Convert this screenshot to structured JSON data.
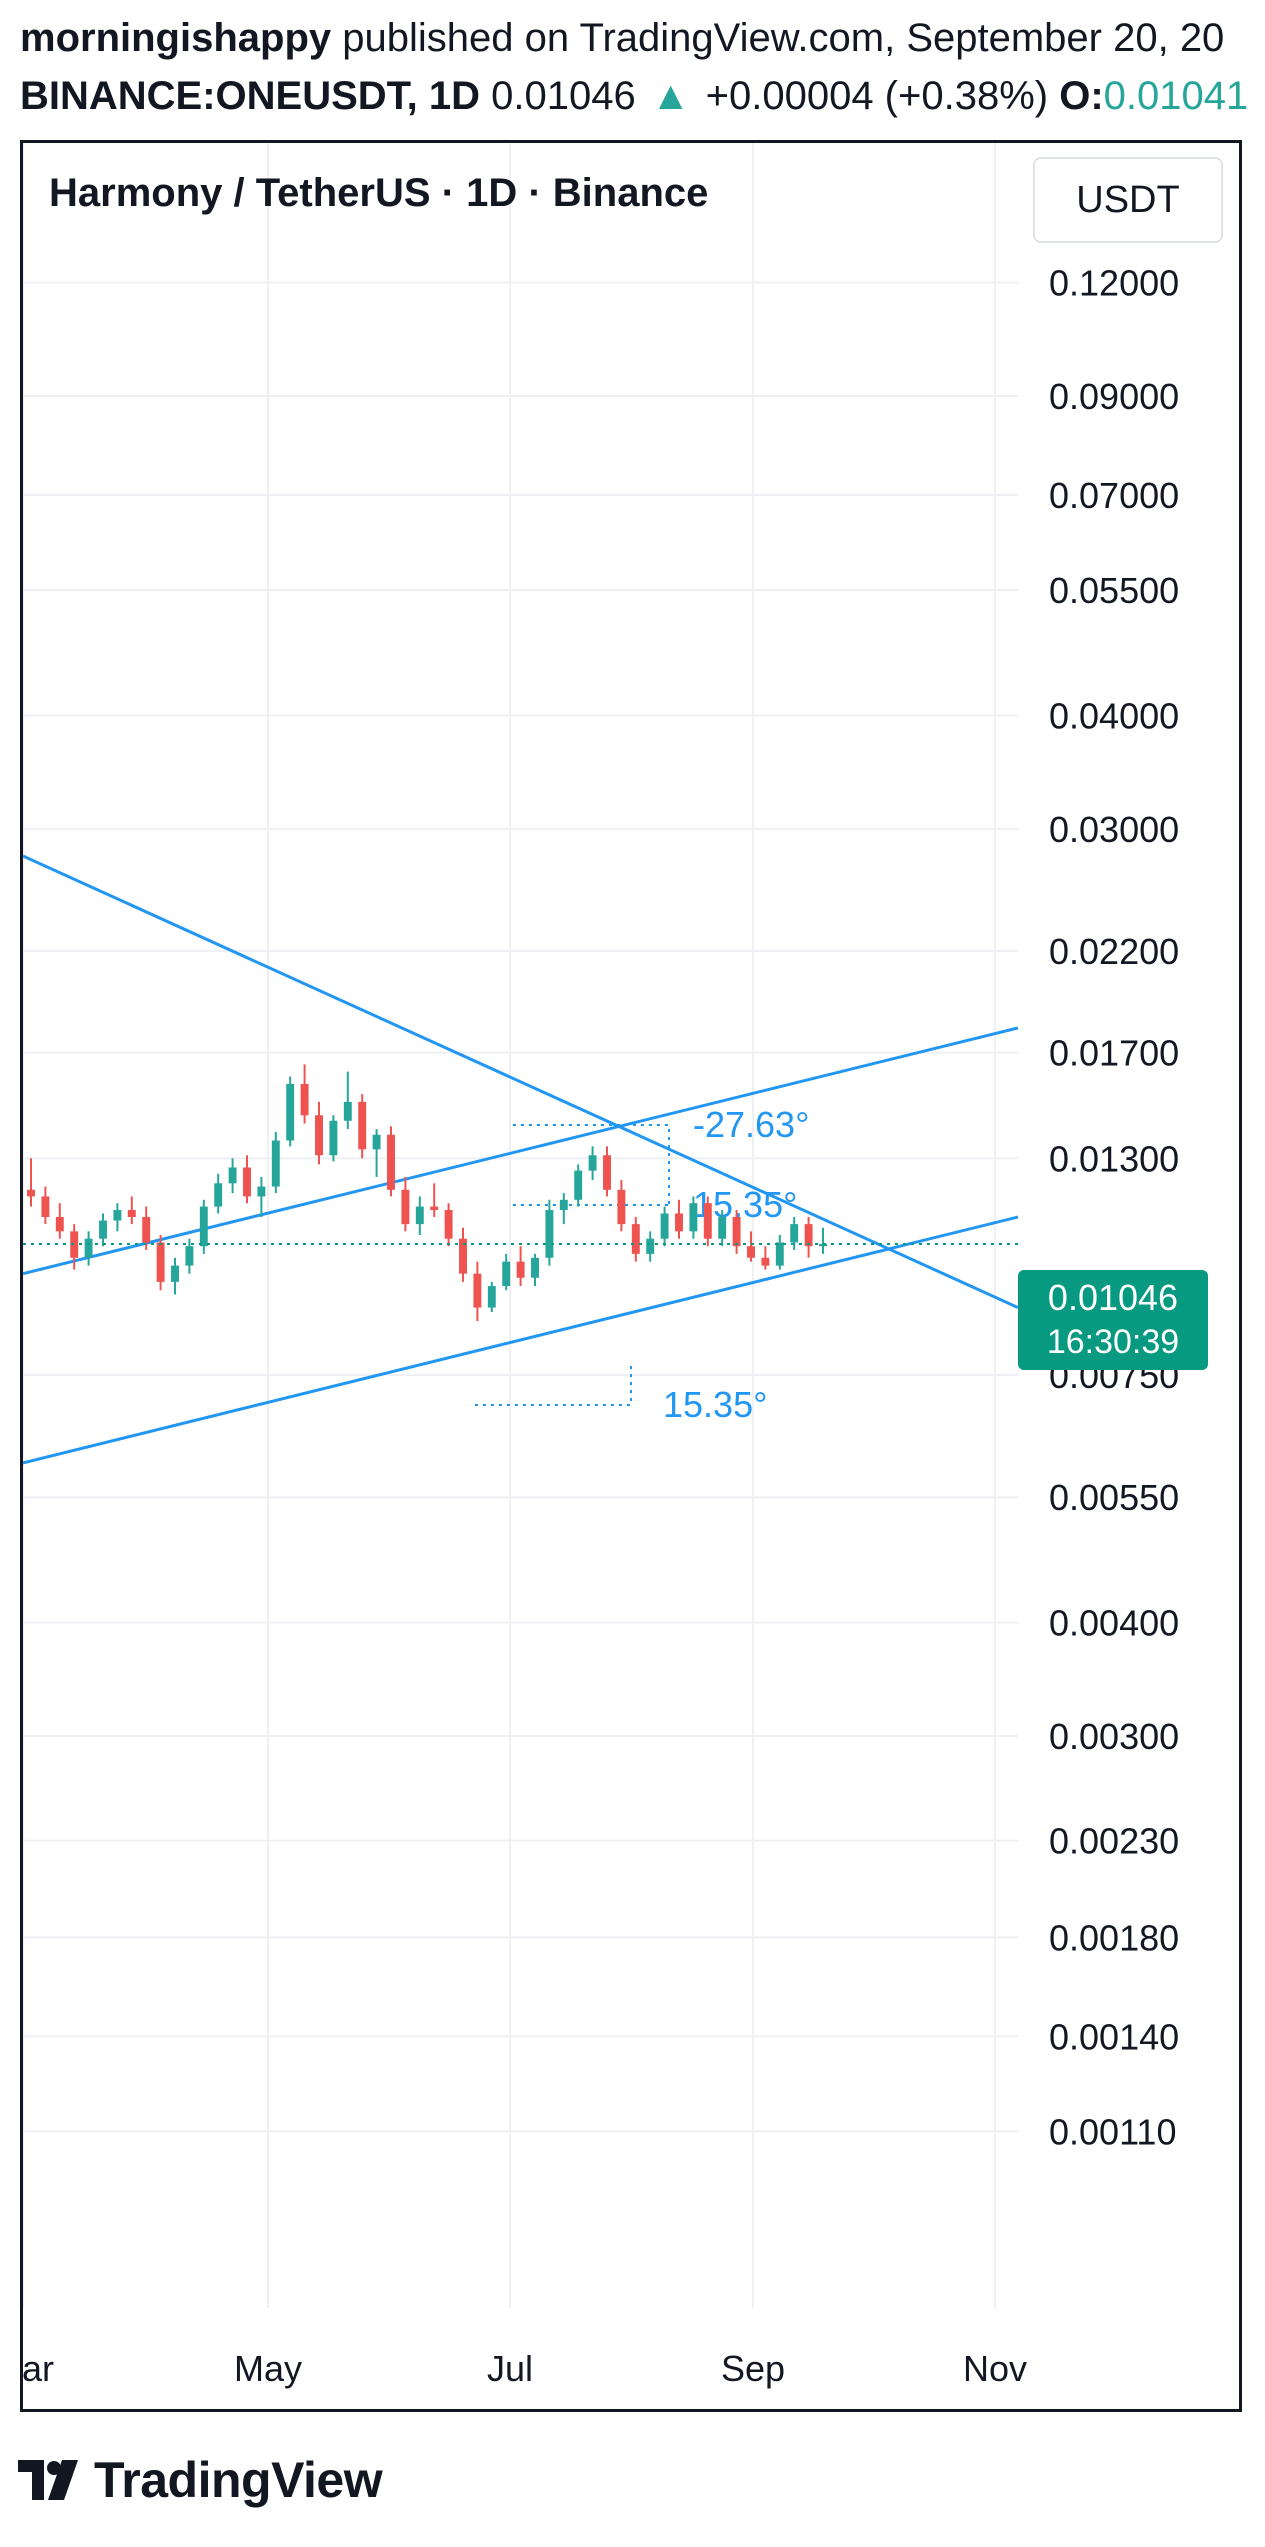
{
  "header": {
    "author": "morningishappy",
    "published_text": " published on TradingView.com, September 20, 20",
    "symbol": "BINANCE:ONEUSDT, 1D",
    "last": "0.01046",
    "change": "+0.00004 (+0.38%)",
    "open_label": "O:",
    "open_value": "0.01041"
  },
  "chart": {
    "title": "Harmony / TetherUS · 1D · Binance",
    "currency": "USDT",
    "price_label": "0.01046",
    "countdown": "16:30:39"
  },
  "chart_data": {
    "type": "candlestick",
    "symbol": "BINANCE:ONEUSDT",
    "interval": "1D",
    "y_scale": "log",
    "y_ticks": [
      "0.12000",
      "0.09000",
      "0.07000",
      "0.05500",
      "0.04000",
      "0.03000",
      "0.02200",
      "0.01700",
      "0.01300",
      "0.00750",
      "0.00550",
      "0.00400",
      "0.00300",
      "0.00230",
      "0.00180",
      "0.00140",
      "0.00110"
    ],
    "x_ticks": [
      "Mar",
      "May",
      "Jul",
      "Sep",
      "Nov"
    ],
    "last_price": 0.01046,
    "ohlc": [
      [
        0.012,
        0.013,
        0.0115,
        0.0118
      ],
      [
        0.0118,
        0.0121,
        0.011,
        0.0112
      ],
      [
        0.0112,
        0.0116,
        0.0106,
        0.0108
      ],
      [
        0.0108,
        0.011,
        0.0098,
        0.0101
      ],
      [
        0.0101,
        0.0108,
        0.0099,
        0.0106
      ],
      [
        0.0106,
        0.0113,
        0.0104,
        0.0111
      ],
      [
        0.0111,
        0.0116,
        0.0108,
        0.0114
      ],
      [
        0.0114,
        0.0118,
        0.011,
        0.0112
      ],
      [
        0.0112,
        0.0115,
        0.0103,
        0.0105
      ],
      [
        0.0105,
        0.0107,
        0.0093,
        0.0095
      ],
      [
        0.0095,
        0.0101,
        0.0092,
        0.0099
      ],
      [
        0.0099,
        0.0106,
        0.0097,
        0.0104
      ],
      [
        0.0104,
        0.0117,
        0.0102,
        0.0115
      ],
      [
        0.0115,
        0.0125,
        0.0113,
        0.0122
      ],
      [
        0.0122,
        0.013,
        0.0119,
        0.0127
      ],
      [
        0.0127,
        0.0131,
        0.0116,
        0.0118
      ],
      [
        0.0118,
        0.0124,
        0.0112,
        0.0121
      ],
      [
        0.0121,
        0.0139,
        0.0119,
        0.0136
      ],
      [
        0.0136,
        0.016,
        0.0134,
        0.0157
      ],
      [
        0.0157,
        0.0165,
        0.0142,
        0.0145
      ],
      [
        0.0145,
        0.015,
        0.0128,
        0.0131
      ],
      [
        0.0131,
        0.0145,
        0.0129,
        0.0143
      ],
      [
        0.0143,
        0.0162,
        0.014,
        0.015
      ],
      [
        0.015,
        0.0153,
        0.013,
        0.0133
      ],
      [
        0.0133,
        0.014,
        0.0124,
        0.0138
      ],
      [
        0.0138,
        0.0141,
        0.0118,
        0.012
      ],
      [
        0.012,
        0.0124,
        0.0108,
        0.011
      ],
      [
        0.011,
        0.0118,
        0.0107,
        0.0115
      ],
      [
        0.0115,
        0.0122,
        0.0112,
        0.0114
      ],
      [
        0.0114,
        0.0116,
        0.0104,
        0.0106
      ],
      [
        0.0106,
        0.0109,
        0.0095,
        0.0097
      ],
      [
        0.0097,
        0.01,
        0.0086,
        0.0089
      ],
      [
        0.0089,
        0.0095,
        0.0088,
        0.0094
      ],
      [
        0.0094,
        0.0102,
        0.0093,
        0.01
      ],
      [
        0.01,
        0.0104,
        0.0094,
        0.0096
      ],
      [
        0.0096,
        0.0102,
        0.0094,
        0.0101
      ],
      [
        0.0101,
        0.0117,
        0.0099,
        0.0114
      ],
      [
        0.0114,
        0.0119,
        0.011,
        0.0117
      ],
      [
        0.0117,
        0.0128,
        0.0115,
        0.0126
      ],
      [
        0.0126,
        0.0134,
        0.0123,
        0.0131
      ],
      [
        0.0131,
        0.0134,
        0.0118,
        0.012
      ],
      [
        0.012,
        0.0123,
        0.0108,
        0.011
      ],
      [
        0.011,
        0.0112,
        0.01,
        0.0102
      ],
      [
        0.0102,
        0.0108,
        0.01,
        0.0106
      ],
      [
        0.0106,
        0.0115,
        0.0104,
        0.0113
      ],
      [
        0.0113,
        0.0117,
        0.0106,
        0.0108
      ],
      [
        0.0108,
        0.0118,
        0.0106,
        0.0116
      ],
      [
        0.0116,
        0.0118,
        0.0104,
        0.0106
      ],
      [
        0.0106,
        0.0114,
        0.0104,
        0.0112
      ],
      [
        0.0112,
        0.0114,
        0.0102,
        0.0104
      ],
      [
        0.0104,
        0.0108,
        0.01,
        0.0101
      ],
      [
        0.0101,
        0.0104,
        0.0098,
        0.0099
      ],
      [
        0.0099,
        0.0107,
        0.0098,
        0.0105
      ],
      [
        0.0105,
        0.0112,
        0.0103,
        0.011
      ],
      [
        0.011,
        0.0112,
        0.0101,
        0.0104
      ],
      [
        0.0104,
        0.0109,
        0.0102,
        0.01046
      ]
    ],
    "trendlines": [
      {
        "points": [
          [
            0,
            0.028
          ],
          [
            1.0,
            0.0089
          ]
        ]
      },
      {
        "points": [
          [
            0,
            0.0097
          ],
          [
            1.0,
            0.0181
          ]
        ]
      },
      {
        "points": [
          [
            0,
            0.006
          ],
          [
            1.0,
            0.0112
          ]
        ]
      }
    ],
    "annotations": [
      "-27.63°",
      "15.35°",
      "15.35°"
    ],
    "colors": {
      "up": "#26a69a",
      "down": "#ef5350",
      "line": "#2196f3",
      "grid": "#eef0f4",
      "price_tag": "#089981"
    }
  }
}
